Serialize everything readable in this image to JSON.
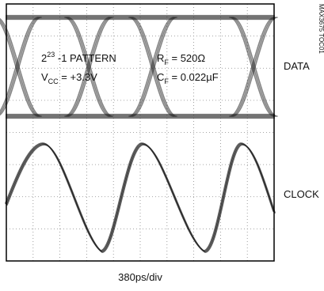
{
  "annotations": {
    "pattern": {
      "base": "2",
      "sup": "23",
      "rest": " -1 PATTERN"
    },
    "vcc": {
      "base": "V",
      "sub": "CC",
      "rest": " = +3.3V"
    },
    "rf": {
      "base": "R",
      "sub": "F",
      "rest": " = 520Ω"
    },
    "cf": {
      "base": "C",
      "sub": "F",
      "rest": " = 0.022µF"
    }
  },
  "figure_id": "MAX3675 TOC01",
  "labels": {
    "data": "DATA",
    "clock": "CLOCK"
  },
  "x_scale": "380ps/div"
}
